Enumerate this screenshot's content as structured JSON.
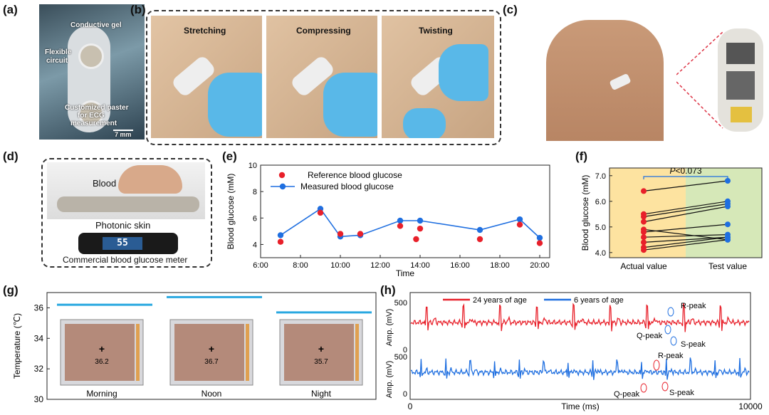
{
  "panel_labels": {
    "a": "(a)",
    "b": "(b)",
    "c": "(c)",
    "d": "(d)",
    "e": "(e)",
    "f": "(f)",
    "g": "(g)",
    "h": "(h)"
  },
  "panel_a": {
    "conductive_gel": "Conductive gel",
    "flexible": "Flexible",
    "circuit": "circuit",
    "paster_1": "Customized paster",
    "paster_2": "for ECG",
    "paster_3": "measurement",
    "scale": "7 mm"
  },
  "panel_b": {
    "stretching": "Stretching",
    "compressing": "Compressing",
    "twisting": "Twisting"
  },
  "panel_d": {
    "blood": "Blood",
    "photonic_skin": "Photonic skin",
    "meter": "Commercial blood glucose meter",
    "meter_display": "55"
  },
  "panel_e": {
    "watermark": ""
  },
  "colors": {
    "red": "#e8202a",
    "blue": "#1f6fe0",
    "orange_bg": "#fde3a0",
    "green_bg": "#d6e8b8",
    "glove": "#59b8e8"
  },
  "chart_data": [
    {
      "id": "e",
      "type": "line",
      "xlabel": "Time",
      "ylabel": "Blood glucose (mM)",
      "xticks": [
        "6:00",
        "8:00",
        "10:00",
        "12:00",
        "14:00",
        "16:00",
        "18:00",
        "20:00"
      ],
      "yticks": [
        "4",
        "6",
        "8",
        "10"
      ],
      "xlim": [
        6,
        20.5
      ],
      "ylim": [
        3,
        10
      ],
      "series": [
        {
          "name": "Reference blood glucose",
          "style": "points",
          "color": "#e8202a",
          "x": [
            7,
            9,
            10,
            11,
            13,
            13.8,
            14,
            17,
            19,
            20
          ],
          "y": [
            4.2,
            6.4,
            4.8,
            4.8,
            5.4,
            4.4,
            5.2,
            4.4,
            5.5,
            4.1
          ]
        },
        {
          "name": "Measured blood glucose",
          "style": "line",
          "color": "#1f6fe0",
          "x": [
            7,
            9,
            10,
            11,
            13,
            14,
            17,
            19,
            20
          ],
          "y": [
            4.7,
            6.7,
            4.6,
            4.7,
            5.8,
            5.8,
            5.1,
            5.9,
            4.5
          ]
        }
      ]
    },
    {
      "id": "f",
      "type": "scatter",
      "ylabel": "Blood glucose (mM)",
      "categories": [
        "Actual value",
        "Test value"
      ],
      "yticks": [
        "4.0",
        "5.0",
        "6.0",
        "7.0"
      ],
      "ylim": [
        3.8,
        7.3
      ],
      "annotation": "P<0.073",
      "annotation_p": "P",
      "annotation_rest": "<0.073",
      "pairs": [
        [
          6.4,
          6.8
        ],
        [
          5.5,
          6.0
        ],
        [
          5.4,
          5.9
        ],
        [
          5.2,
          5.8
        ],
        [
          4.9,
          4.5
        ],
        [
          4.8,
          5.1
        ],
        [
          4.6,
          4.7
        ],
        [
          4.4,
          4.6
        ],
        [
          4.2,
          4.6
        ],
        [
          4.1,
          4.5
        ]
      ]
    },
    {
      "id": "g",
      "type": "bar",
      "ylabel": "Temperature (℃)",
      "categories": [
        "Morning",
        "Noon",
        "Night"
      ],
      "values": [
        36.2,
        36.7,
        35.7
      ],
      "value_labels": [
        "36.2",
        "36.7",
        "35.7"
      ],
      "yticks": [
        "30",
        "32",
        "34",
        "36"
      ],
      "ylim": [
        30,
        37
      ]
    },
    {
      "id": "h",
      "type": "line",
      "xlabel": "Time (ms)",
      "xticks": [
        "0",
        "10000"
      ],
      "xlim": [
        0,
        10000
      ],
      "ylabel_top": "Amp. (mV)",
      "ylabel_bottom": "Amp. (mV)",
      "yticks_top": [
        "500",
        "0"
      ],
      "yticks_bottom": [
        "500",
        "0"
      ],
      "series": [
        {
          "name": "24 years of age",
          "color": "#e8202a"
        },
        {
          "name": "6 years of age",
          "color": "#1f6fe0"
        }
      ],
      "annotations": [
        "R-peak",
        "Q-peak",
        "S-peak",
        "R-peak",
        "Q-peak",
        "S-peak"
      ]
    }
  ]
}
